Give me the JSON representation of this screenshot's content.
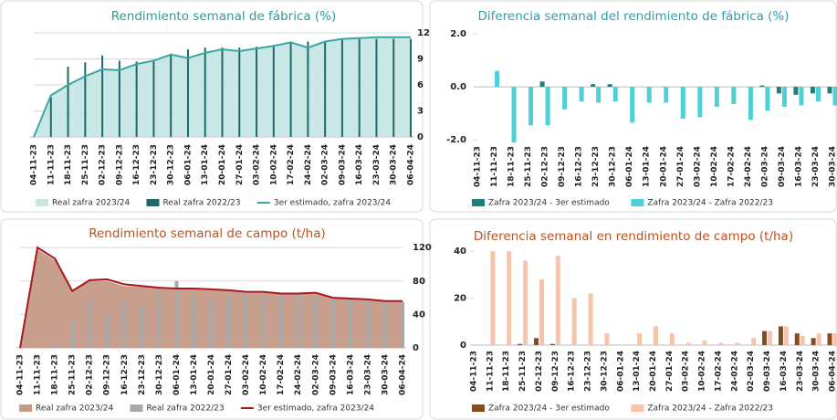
{
  "chart_data": [
    {
      "type": "combo",
      "title": "Rendimiento semanal de fábrica (%)",
      "categories": [
        "04-11-23",
        "11-11-23",
        "18-11-23",
        "25-11-23",
        "02-12-23",
        "09-12-23",
        "16-12-23",
        "23-12-23",
        "30-12-23",
        "06-01-24",
        "13-01-24",
        "20-01-24",
        "27-01-24",
        "03-02-24",
        "10-02-24",
        "17-02-24",
        "24-02-24",
        "02-03-24",
        "09-03-24",
        "16-03-24",
        "23-03-24",
        "30-03-24",
        "06-04-24"
      ],
      "series": [
        {
          "name": "Real zafra 2023/24",
          "type": "area",
          "color": "#c5e6e4",
          "values": [
            0,
            4.8,
            6,
            7,
            7.8,
            7.7,
            8.4,
            8.8,
            9.5,
            9.1,
            9.7,
            10.1,
            9.9,
            10.2,
            10.5,
            10.9,
            10.3,
            11,
            11.3,
            11.4,
            11.5,
            11.5,
            11.5
          ]
        },
        {
          "name": "Real zafra 2022/23",
          "type": "bar",
          "color": "#1d6b69",
          "values": [
            null,
            4.6,
            8.1,
            8.6,
            9.4,
            8.8,
            8.7,
            8.9,
            9.6,
            10.1,
            10.3,
            10.3,
            10.3,
            10.4,
            10.4,
            11,
            11,
            11,
            11.2,
            11.3,
            11.3,
            11.3,
            11.3
          ]
        },
        {
          "name": "3er estimado, zafra 2023/24",
          "type": "line",
          "color": "#3aa6a4",
          "values": [
            0,
            4.8,
            6,
            7,
            7.8,
            7.7,
            8.4,
            8.8,
            9.5,
            9.1,
            9.7,
            10.1,
            9.9,
            10.2,
            10.5,
            10.9,
            10.3,
            11,
            11.3,
            11.4,
            11.5,
            11.5,
            11.5
          ]
        }
      ],
      "ylim": [
        0,
        12
      ],
      "yticks": [
        0,
        3,
        6,
        9,
        12
      ],
      "grid": true
    },
    {
      "type": "bar",
      "title": "Diferencia semanal del rendimiento de fábrica (%)",
      "categories": [
        "04-11-23",
        "11-11-23",
        "18-11-23",
        "25-11-23",
        "02-12-23",
        "09-12-23",
        "16-12-23",
        "23-12-23",
        "30-12-23",
        "06-01-24",
        "13-01-24",
        "20-01-24",
        "27-01-24",
        "03-02-24",
        "10-02-24",
        "17-02-24",
        "24-02-24",
        "02-03-24",
        "09-03-24",
        "16-03-24",
        "23-03-24",
        "30-03-24"
      ],
      "series": [
        {
          "name": "Zafra 2023/24 - 3er estimado",
          "type": "bar",
          "color": "#1f7f7c",
          "values": [
            null,
            0,
            0,
            0,
            0.2,
            0,
            0,
            0.1,
            0.1,
            0,
            0,
            0,
            0,
            0,
            0,
            0,
            0,
            0.05,
            -0.25,
            -0.3,
            -0.25,
            -0.25
          ]
        },
        {
          "name": "Zafra 2023/24 - Zafra 2022/23",
          "type": "bar",
          "color": "#4fd0d6",
          "values": [
            null,
            0.6,
            -2.1,
            -1.45,
            -1.45,
            -0.85,
            -0.55,
            -0.6,
            -0.55,
            -1.35,
            -0.6,
            -0.6,
            -1.2,
            -1.15,
            -0.75,
            -0.65,
            -1.25,
            -0.9,
            -0.75,
            -0.7,
            -0.55,
            -0.7
          ]
        }
      ],
      "ylim": [
        -2.2,
        2.0
      ],
      "yticks": [
        {
          "value": -2,
          "label": "-2.0"
        },
        {
          "value": 0,
          "label": "0.0"
        },
        {
          "value": 2,
          "label": "2.0"
        }
      ],
      "grid": false
    },
    {
      "type": "combo",
      "title": "Rendimiento semanal de campo (t/ha)",
      "categories": [
        "04-11-23",
        "11-11-23",
        "18-11-23",
        "25-11-23",
        "02-12-23",
        "09-12-23",
        "16-12-23",
        "23-12-23",
        "30-12-23",
        "06-01-24",
        "13-01-24",
        "20-01-24",
        "27-01-24",
        "03-02-24",
        "10-02-24",
        "17-02-24",
        "24-02-24",
        "02-03-24",
        "09-03-24",
        "16-03-24",
        "23-03-24",
        "30-03-24",
        "06-04-24"
      ],
      "series": [
        {
          "name": "Real zafra 2023/24",
          "type": "area",
          "color": "#c49a86",
          "values": [
            0,
            118,
            105,
            67,
            80,
            80,
            74,
            73,
            71,
            70,
            70,
            69,
            69,
            66,
            66,
            65,
            65,
            66,
            60,
            59,
            58,
            57,
            57
          ]
        },
        {
          "name": "Real zafra 2022/23",
          "type": "bar",
          "color": "#a8a8a8",
          "values": [
            null,
            null,
            5,
            30,
            55,
            40,
            55,
            50,
            65,
            80,
            63,
            58,
            63,
            65,
            63,
            62,
            64,
            60,
            58,
            58,
            57,
            55,
            55
          ]
        },
        {
          "name": "3er estimado, zafra 2023/24",
          "type": "line",
          "color": "#a8161e",
          "values": [
            0,
            120,
            107,
            68,
            81,
            82,
            76,
            74,
            72,
            71,
            71,
            70,
            69,
            67,
            67,
            65,
            65,
            66,
            60,
            59,
            58,
            56,
            56
          ]
        }
      ],
      "ylim": [
        0,
        130
      ],
      "yticks": [
        0,
        40,
        80,
        120
      ],
      "grid": true
    },
    {
      "type": "bar",
      "title": "Diferencia semanal en rendimiento de campo (t/ha)",
      "categories": [
        "04-11-23",
        "11-11-23",
        "18-11-23",
        "25-11-23",
        "02-12-23",
        "09-12-23",
        "16-12-23",
        "23-12-23",
        "30-12-23",
        "06-01-24",
        "13-01-24",
        "20-01-24",
        "27-01-24",
        "03-02-24",
        "10-02-24",
        "17-02-24",
        "24-02-24",
        "02-03-24",
        "09-03-24",
        "16-03-24",
        "23-03-24",
        "30-03-24",
        "06-04-24"
      ],
      "series": [
        {
          "name": "Zafra 2023/24 - 3er estimado",
          "type": "bar",
          "color": "#8b4a1c",
          "values": [
            null,
            0,
            0,
            0.5,
            3,
            0.5,
            0,
            0,
            0,
            0,
            0,
            0,
            0,
            0,
            0,
            0,
            0,
            0,
            6,
            8,
            5,
            3,
            5
          ]
        },
        {
          "name": "Zafra 2023/24 - Zafra 2022/23",
          "type": "bar",
          "color": "#f8c3a6",
          "values": [
            null,
            40,
            40,
            36,
            28,
            38,
            20,
            22,
            5,
            0,
            5,
            8,
            5,
            1,
            2,
            1,
            1,
            3,
            6,
            8,
            4,
            5,
            5
          ]
        }
      ],
      "ylim": [
        0,
        42
      ],
      "yticks": [
        0,
        20,
        40
      ],
      "grid": false
    }
  ]
}
